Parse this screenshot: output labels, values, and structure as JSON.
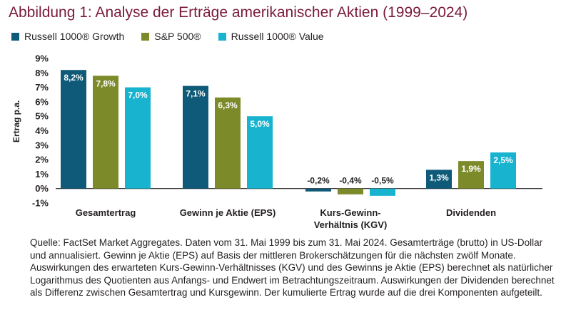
{
  "title": "Abbildung 1: Analyse der Erträge amerikanischer Aktien (1999–2024)",
  "legend": [
    {
      "label": "Russell 1000® Growth",
      "color": "#0e5a78"
    },
    {
      "label": "S&P 500®",
      "color": "#7d8a2a"
    },
    {
      "label": "Russell 1000® Value",
      "color": "#17b3cf"
    }
  ],
  "note": "Quelle: FactSet Market Aggregates. Daten vom 31. Mai 1999 bis zum 31. Mai 2024. Gesamterträge (brutto) in US-Dollar und annualisiert. Gewinn je Aktie (EPS) auf Basis der mittleren Brokerschätzungen für die nächsten zwölf Monate. Auswirkungen des erwarteten Kurs-Gewinn-Verhältnisses (KGV) und des Gewinns je Aktie (EPS) berechnet als natürlicher Logarithmus des Quotienten aus Anfangs- und Endwert im Betrachtungszeitraum. Auswirkungen der Dividenden berechnet als Differenz zwischen Gesamtertrag und Kursgewinn. Der kumulierte Ertrag wurde auf die drei Komponenten aufgeteilt.",
  "chart_data": {
    "type": "bar",
    "title": "Abbildung 1: Analyse der Erträge amerikanischer Aktien (1999–2024)",
    "xlabel": "",
    "ylabel": "Ertrag p.a.",
    "ylim": [
      -1,
      9
    ],
    "yticks": [
      "-1%",
      "0%",
      "1%",
      "2%",
      "3%",
      "4%",
      "5%",
      "6%",
      "7%",
      "8%",
      "9%"
    ],
    "grid": false,
    "legend_position": "top-left",
    "categories": [
      [
        "Gesamtertrag"
      ],
      [
        "Gewinn je Aktie (EPS)"
      ],
      [
        "Kurs-Gewinn-",
        "Verhältnis (KGV)"
      ],
      [
        "Dividenden"
      ]
    ],
    "series": [
      {
        "name": "Russell 1000® Growth",
        "color": "#0e5a78",
        "values": [
          8.2,
          7.1,
          -0.2,
          1.3
        ],
        "labels": [
          "8,2%",
          "7,1%",
          "-0,2%",
          "1,3%"
        ]
      },
      {
        "name": "S&P 500®",
        "color": "#7d8a2a",
        "values": [
          7.8,
          6.3,
          -0.4,
          1.9
        ],
        "labels": [
          "7,8%",
          "6,3%",
          "-0,4%",
          "1,9%"
        ]
      },
      {
        "name": "Russell 1000® Value",
        "color": "#17b3cf",
        "values": [
          7.0,
          5.0,
          -0.5,
          2.5
        ],
        "labels": [
          "7,0%",
          "5,0%",
          "-0,5%",
          "2,5%"
        ]
      }
    ]
  }
}
